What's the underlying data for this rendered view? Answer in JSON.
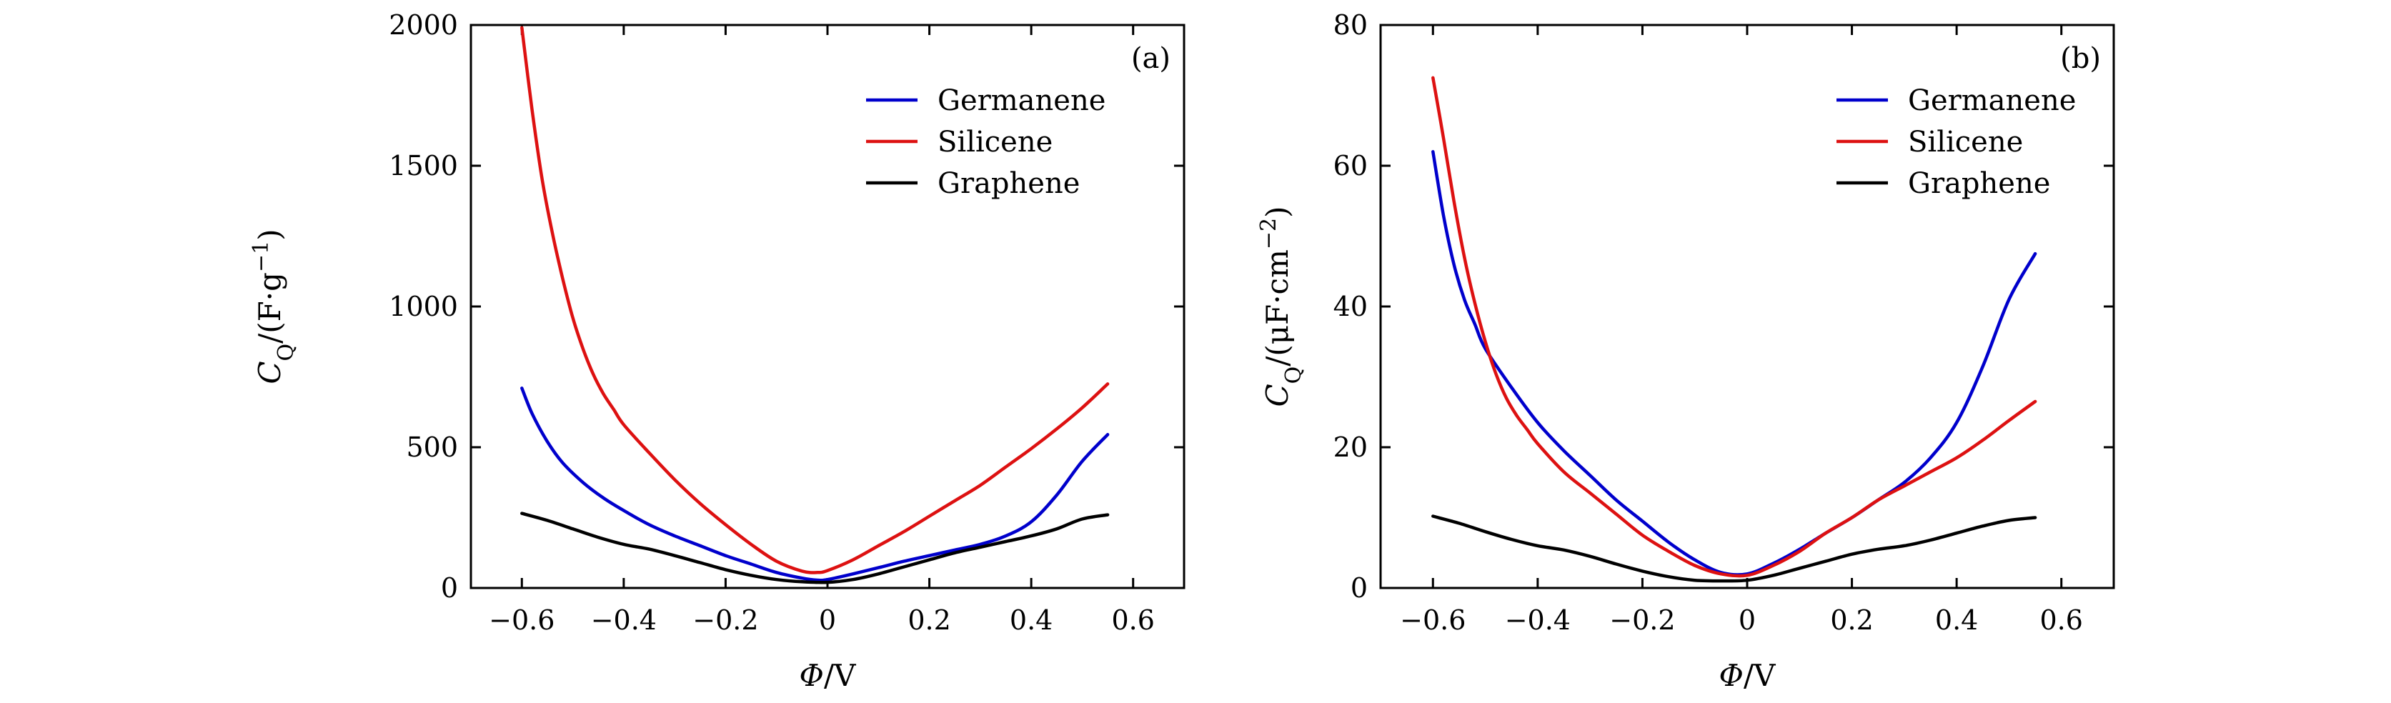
{
  "colors": {
    "germanene": "#0000cc",
    "silicene": "#dd1111",
    "graphene": "#000000"
  },
  "chart_data": [
    {
      "type": "line",
      "panel_label": "(a)",
      "xlabel": {
        "symbol": "Φ",
        "unit": "/V"
      },
      "ylabel": {
        "symbol": "C",
        "subscript": "Q",
        "unit_open": "/(F·g",
        "unit_exp": "−1",
        "unit_close": ")"
      },
      "xlim": [
        -0.7,
        0.7
      ],
      "ylim": [
        0,
        2000
      ],
      "xticks": [
        -0.6,
        -0.4,
        -0.2,
        0,
        0.2,
        0.4,
        0.6
      ],
      "xtick_labels": [
        "−0.6",
        "−0.4",
        "−0.2",
        "0",
        "0.2",
        "0.4",
        "0.6"
      ],
      "yticks": [
        0,
        500,
        1000,
        1500,
        2000
      ],
      "ytick_labels": [
        "0",
        "500",
        "1000",
        "1500",
        "2000"
      ],
      "legend_position": "top-right",
      "series": [
        {
          "name": "Germanene",
          "color": "#0000cc",
          "x": [
            -0.6,
            -0.58,
            -0.55,
            -0.52,
            -0.48,
            -0.44,
            -0.4,
            -0.35,
            -0.3,
            -0.25,
            -0.2,
            -0.15,
            -0.1,
            -0.05,
            -0.02,
            0,
            0.05,
            0.1,
            0.15,
            0.2,
            0.25,
            0.3,
            0.35,
            0.4,
            0.45,
            0.5,
            0.55
          ],
          "y": [
            710,
            620,
            520,
            445,
            375,
            320,
            275,
            225,
            185,
            150,
            115,
            85,
            55,
            35,
            28,
            30,
            50,
            72,
            95,
            115,
            135,
            155,
            185,
            235,
            330,
            450,
            545
          ]
        },
        {
          "name": "Silicene",
          "color": "#dd1111",
          "x": [
            -0.6,
            -0.58,
            -0.56,
            -0.54,
            -0.52,
            -0.5,
            -0.48,
            -0.46,
            -0.44,
            -0.42,
            -0.4,
            -0.35,
            -0.3,
            -0.25,
            -0.2,
            -0.15,
            -0.1,
            -0.05,
            -0.02,
            0,
            0.05,
            0.1,
            0.15,
            0.2,
            0.25,
            0.3,
            0.35,
            0.4,
            0.45,
            0.5,
            0.55
          ],
          "y": [
            1990,
            1700,
            1450,
            1260,
            1100,
            960,
            850,
            760,
            690,
            635,
            580,
            480,
            385,
            300,
            225,
            155,
            95,
            60,
            55,
            62,
            100,
            150,
            200,
            255,
            310,
            365,
            430,
            495,
            565,
            640,
            725
          ]
        },
        {
          "name": "Graphene",
          "color": "#000000",
          "x": [
            -0.6,
            -0.55,
            -0.5,
            -0.45,
            -0.4,
            -0.35,
            -0.3,
            -0.25,
            -0.2,
            -0.15,
            -0.1,
            -0.05,
            0,
            0.05,
            0.1,
            0.15,
            0.2,
            0.25,
            0.3,
            0.35,
            0.4,
            0.45,
            0.5,
            0.55
          ],
          "y": [
            265,
            240,
            210,
            180,
            155,
            138,
            115,
            90,
            65,
            45,
            30,
            22,
            20,
            30,
            50,
            75,
            100,
            125,
            145,
            165,
            185,
            210,
            245,
            260
          ]
        }
      ]
    },
    {
      "type": "line",
      "panel_label": "(b)",
      "xlabel": {
        "symbol": "Φ",
        "unit": "/V"
      },
      "ylabel": {
        "symbol": "C",
        "subscript": "Q",
        "unit_open": "/(μF·cm",
        "unit_exp": "−2",
        "unit_close": ")"
      },
      "xlim": [
        -0.7,
        0.7
      ],
      "ylim": [
        0,
        80
      ],
      "xticks": [
        -0.6,
        -0.4,
        -0.2,
        0,
        0.2,
        0.4,
        0.6
      ],
      "xtick_labels": [
        "−0.6",
        "−0.4",
        "−0.2",
        "0",
        "0.2",
        "0.4",
        "0.6"
      ],
      "yticks": [
        0,
        20,
        40,
        60,
        80
      ],
      "ytick_labels": [
        "0",
        "20",
        "40",
        "60",
        "80"
      ],
      "legend_position": "top-right",
      "series": [
        {
          "name": "Germanene",
          "color": "#0000cc",
          "x": [
            -0.6,
            -0.58,
            -0.56,
            -0.54,
            -0.52,
            -0.5,
            -0.45,
            -0.4,
            -0.35,
            -0.3,
            -0.25,
            -0.2,
            -0.15,
            -0.1,
            -0.05,
            0,
            0.05,
            0.1,
            0.15,
            0.2,
            0.25,
            0.3,
            0.35,
            0.4,
            0.45,
            0.5,
            0.55
          ],
          "y": [
            62,
            53,
            46,
            41,
            37.5,
            34,
            28.5,
            23.5,
            19.5,
            16,
            12.5,
            9.5,
            6.5,
            4,
            2.2,
            2,
            3.5,
            5.5,
            7.8,
            10,
            12.5,
            15,
            18.5,
            23.5,
            31.5,
            41,
            47.5
          ]
        },
        {
          "name": "Silicene",
          "color": "#dd1111",
          "x": [
            -0.6,
            -0.58,
            -0.56,
            -0.54,
            -0.52,
            -0.5,
            -0.48,
            -0.46,
            -0.44,
            -0.42,
            -0.4,
            -0.35,
            -0.3,
            -0.25,
            -0.2,
            -0.15,
            -0.1,
            -0.05,
            0,
            0.05,
            0.1,
            0.15,
            0.2,
            0.25,
            0.3,
            0.35,
            0.4,
            0.45,
            0.5,
            0.55
          ],
          "y": [
            72.5,
            64,
            55,
            47,
            40.5,
            35,
            30.5,
            27,
            24.5,
            22.5,
            20.5,
            16.5,
            13.5,
            10.5,
            7.5,
            5.2,
            3.2,
            2,
            1.8,
            3.2,
            5.2,
            7.8,
            10,
            12.5,
            14.5,
            16.5,
            18.5,
            21,
            23.8,
            26.5
          ]
        },
        {
          "name": "Graphene",
          "color": "#000000",
          "x": [
            -0.6,
            -0.55,
            -0.5,
            -0.45,
            -0.4,
            -0.35,
            -0.3,
            -0.25,
            -0.2,
            -0.15,
            -0.1,
            -0.05,
            0,
            0.05,
            0.1,
            0.15,
            0.2,
            0.25,
            0.3,
            0.35,
            0.4,
            0.45,
            0.5,
            0.55
          ],
          "y": [
            10.2,
            9.2,
            8,
            6.9,
            6,
            5.4,
            4.5,
            3.4,
            2.4,
            1.6,
            1.1,
            1,
            1.1,
            1.8,
            2.8,
            3.8,
            4.8,
            5.5,
            6,
            6.8,
            7.8,
            8.8,
            9.6,
            10
          ]
        }
      ]
    }
  ]
}
